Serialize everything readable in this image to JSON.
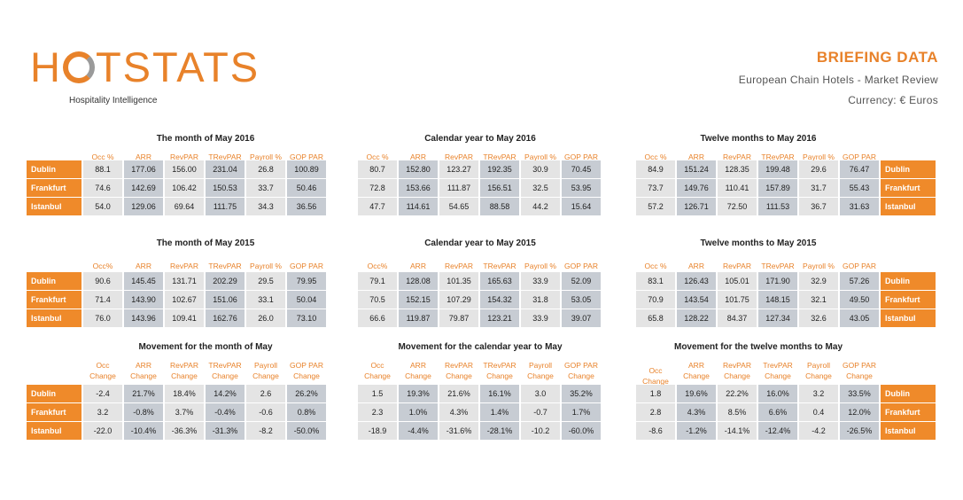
{
  "logo": {
    "text_pre": "H",
    "text_post": "TSTATS",
    "tagline": "Hospitality Intelligence"
  },
  "header": {
    "title": "BRIEFING DATA",
    "subtitle": "European Chain Hotels - Market Review",
    "currency": "Currency: € Euros"
  },
  "cities": [
    "Dublin",
    "Frankfurt",
    "Istanbul"
  ],
  "headers_std": [
    "Occ %",
    "ARR",
    "RevPAR",
    "TRevPAR",
    "Payroll %",
    "GOP PAR"
  ],
  "headers_std2": [
    "Occ%",
    "ARR",
    "RevPAR",
    "TRevPAR",
    "Payroll %",
    "GOP PAR"
  ],
  "headers_mv": [
    "Occ Change",
    "ARR Change",
    "RevPAR Change",
    "TRevPAR Change",
    "Payroll Change",
    "GOP PAR Change"
  ],
  "headers_mv3": [
    "Occ Change",
    "ARR Change",
    "RevPAR Change",
    "TrevPAR Change",
    "Payroll Change",
    "GOP PAR Change"
  ],
  "sections": [
    {
      "title": "The month of May 2016",
      "rows": [
        [
          "88.1",
          "177.06",
          "156.00",
          "231.04",
          "26.8",
          "100.89"
        ],
        [
          "74.6",
          "142.69",
          "106.42",
          "150.53",
          "33.7",
          "50.46"
        ],
        [
          "54.0",
          "129.06",
          "69.64",
          "111.75",
          "34.3",
          "36.56"
        ]
      ]
    },
    {
      "title": "Calendar year to May 2016",
      "rows": [
        [
          "80.7",
          "152.80",
          "123.27",
          "192.35",
          "30.9",
          "70.45"
        ],
        [
          "72.8",
          "153.66",
          "111.87",
          "156.51",
          "32.5",
          "53.95"
        ],
        [
          "47.7",
          "114.61",
          "54.65",
          "88.58",
          "44.2",
          "15.64"
        ]
      ]
    },
    {
      "title": "Twelve months to May 2016",
      "rows": [
        [
          "84.9",
          "151.24",
          "128.35",
          "199.48",
          "29.6",
          "76.47"
        ],
        [
          "73.7",
          "149.76",
          "110.41",
          "157.89",
          "31.7",
          "55.43"
        ],
        [
          "57.2",
          "126.71",
          "72.50",
          "111.53",
          "36.7",
          "31.63"
        ]
      ]
    },
    {
      "title": "The month of May 2015",
      "rows": [
        [
          "90.6",
          "145.45",
          "131.71",
          "202.29",
          "29.5",
          "79.95"
        ],
        [
          "71.4",
          "143.90",
          "102.67",
          "151.06",
          "33.1",
          "50.04"
        ],
        [
          "76.0",
          "143.96",
          "109.41",
          "162.76",
          "26.0",
          "73.10"
        ]
      ]
    },
    {
      "title": "Calendar year to May 2015",
      "rows": [
        [
          "79.1",
          "128.08",
          "101.35",
          "165.63",
          "33.9",
          "52.09"
        ],
        [
          "70.5",
          "152.15",
          "107.29",
          "154.32",
          "31.8",
          "53.05"
        ],
        [
          "66.6",
          "119.87",
          "79.87",
          "123.21",
          "33.9",
          "39.07"
        ]
      ]
    },
    {
      "title": "Twelve months to May 2015",
      "rows": [
        [
          "83.1",
          "126.43",
          "105.01",
          "171.90",
          "32.9",
          "57.26"
        ],
        [
          "70.9",
          "143.54",
          "101.75",
          "148.15",
          "32.1",
          "49.50"
        ],
        [
          "65.8",
          "128.22",
          "84.37",
          "127.34",
          "32.6",
          "43.05"
        ]
      ]
    },
    {
      "title": "Movement for the month of May",
      "rows": [
        [
          "-2.4",
          "21.7%",
          "18.4%",
          "14.2%",
          "2.6",
          "26.2%"
        ],
        [
          "3.2",
          "-0.8%",
          "3.7%",
          "-0.4%",
          "-0.6",
          "0.8%"
        ],
        [
          "-22.0",
          "-10.4%",
          "-36.3%",
          "-31.3%",
          "-8.2",
          "-50.0%"
        ]
      ]
    },
    {
      "title": "Movement for the calendar year to May",
      "rows": [
        [
          "1.5",
          "19.3%",
          "21.6%",
          "16.1%",
          "3.0",
          "35.2%"
        ],
        [
          "2.3",
          "1.0%",
          "4.3%",
          "1.4%",
          "-0.7",
          "1.7%"
        ],
        [
          "-18.9",
          "-4.4%",
          "-31.6%",
          "-28.1%",
          "-10.2",
          "-60.0%"
        ]
      ]
    },
    {
      "title": "Movement for the twelve months to May",
      "rows": [
        [
          "1.8",
          "19.6%",
          "22.2%",
          "16.0%",
          "3.2",
          "33.5%"
        ],
        [
          "2.8",
          "4.3%",
          "8.5%",
          "6.6%",
          "0.4",
          "12.0%"
        ],
        [
          "-8.6",
          "-1.2%",
          "-14.1%",
          "-12.4%",
          "-4.2",
          "-26.5%"
        ]
      ]
    }
  ]
}
